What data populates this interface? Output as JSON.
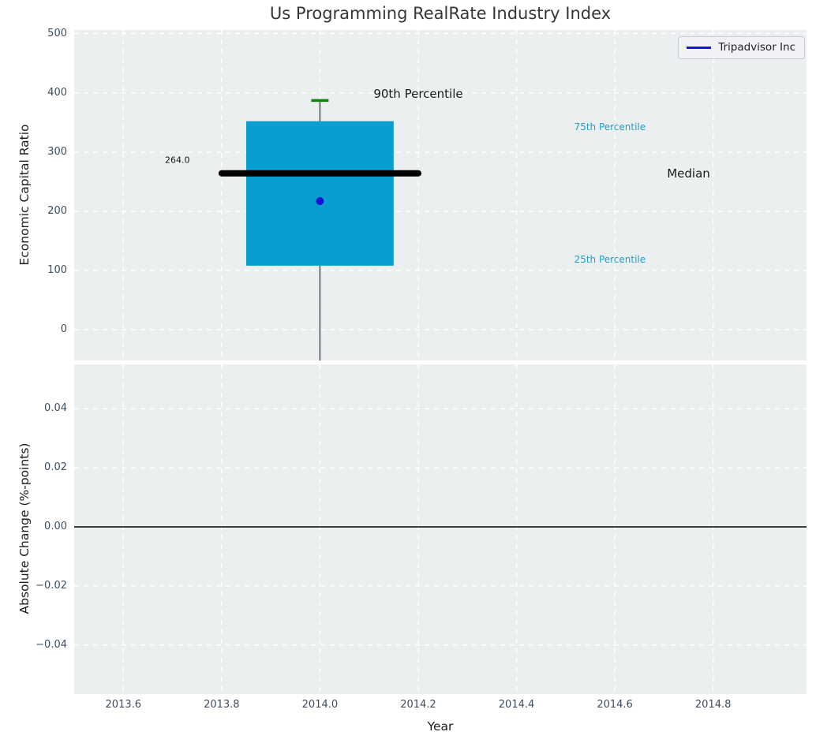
{
  "title": "Us Programming RealRate Industry Index",
  "legend": {
    "label": "Tripadvisor Inc",
    "position": "upper right"
  },
  "colors": {
    "plot_background": "#eceff0",
    "grid": "#ffffff",
    "tick_label": "#3b4d60",
    "title": "#333637",
    "box_fill": "#0a9ed0",
    "median_line": "#000000",
    "whisker": "#55585a",
    "p90_cap": "#0b860b",
    "company_dot": "#1414d9",
    "legend_line": "#1414d9",
    "percentile_label": "#1d9fc9",
    "annotation_text": "#141414",
    "zero_line": "#000000"
  },
  "chart_data": [
    {
      "type": "box",
      "title": "Us Programming RealRate Industry Index",
      "ylabel": "Economic Capital Ratio",
      "xlabel": "",
      "xlim": [
        2013.5,
        2014.99
      ],
      "ylim": [
        -52,
        506
      ],
      "xtick_values": [
        2013.6,
        2013.8,
        2014.0,
        2014.2,
        2014.4,
        2014.6,
        2014.8
      ],
      "xtick_labels_shown": false,
      "ytick_values": [
        0,
        100,
        200,
        300,
        400,
        500
      ],
      "ytick_labels": [
        "0",
        "100",
        "200",
        "300",
        "400",
        "500"
      ],
      "grid": "white dashed, on",
      "legend_entries": [
        "Tripadvisor Inc"
      ],
      "box": {
        "x": 2014.0,
        "box_width": 0.3,
        "p25": 108,
        "median": 264,
        "p75": 352,
        "p90": 387,
        "median_line_span": [
          2013.8,
          2014.2
        ],
        "lower_whisker_clipped_below_axis": true
      },
      "company_point": {
        "label": "Tripadvisor Inc",
        "x": 2014.0,
        "y": 217
      },
      "annotations": [
        {
          "text": "264.0",
          "x": 2013.71,
          "y": 286,
          "color": "#141414",
          "size": 11
        },
        {
          "text": "90th Percentile",
          "x": 2014.2,
          "y": 398,
          "color": "#1a1a1a",
          "size": 15
        },
        {
          "text": "75th Percentile",
          "x": 2014.59,
          "y": 342,
          "color": "#1d9fc9",
          "size": 12
        },
        {
          "text": "Median",
          "x": 2014.75,
          "y": 264,
          "color": "#1a1a1a",
          "size": 15
        },
        {
          "text": "25th Percentile",
          "x": 2014.59,
          "y": 118,
          "color": "#1d9fc9",
          "size": 12
        }
      ]
    },
    {
      "type": "line",
      "ylabel": "Absolute Change (%-points)",
      "xlabel": "Year",
      "xlim": [
        2013.5,
        2014.99
      ],
      "ylim": [
        -0.0567,
        0.0551
      ],
      "xtick_values": [
        2013.6,
        2013.8,
        2014.0,
        2014.2,
        2014.4,
        2014.6,
        2014.8
      ],
      "xtick_labels": [
        "2013.6",
        "2013.8",
        "2014.0",
        "2014.2",
        "2014.4",
        "2014.6",
        "2014.8"
      ],
      "ytick_values": [
        0.04,
        0.02,
        0.0,
        -0.02,
        -0.04
      ],
      "ytick_labels": [
        "0.04",
        "0.02",
        "0.00",
        "−0.02",
        "−0.04"
      ],
      "grid": "white dashed, on",
      "zero_line_y": 0.0,
      "series": []
    }
  ]
}
